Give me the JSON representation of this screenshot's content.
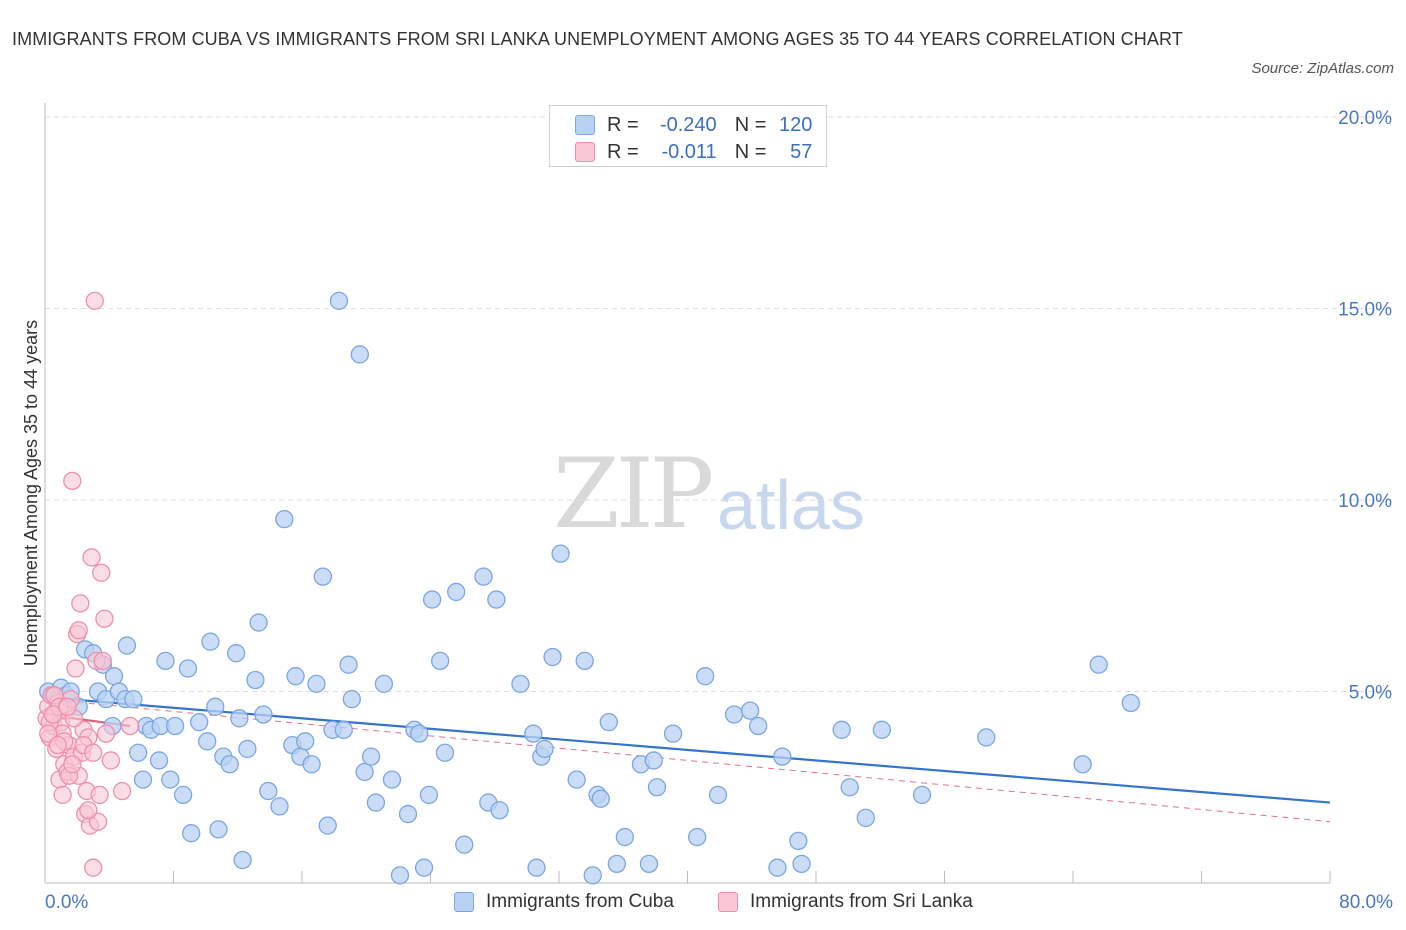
{
  "header": {
    "title": "IMMIGRANTS FROM CUBA VS IMMIGRANTS FROM SRI LANKA UNEMPLOYMENT AMONG AGES 35 TO 44 YEARS CORRELATION CHART",
    "source": "Source: ZipAtlas.com"
  },
  "watermark": {
    "zip": "ZIP",
    "atlas": "atlas"
  },
  "legend": {
    "r_label": "R =",
    "n_label": "N =",
    "cuba": {
      "r": "-0.240",
      "n": "120"
    },
    "srilanka": {
      "r": "-0.011",
      "n": "57"
    }
  },
  "colors": {
    "cuba_fill": "#b9d1f3",
    "cuba_stroke": "#7aa6e3",
    "cuba_line": "#3373cc",
    "srilanka_fill": "#f8c6d4",
    "srilanka_stroke": "#ef8fac",
    "srilanka_line": "#e0607e",
    "axis_text": "#4a78c2",
    "grid": "#dddddd"
  },
  "chart_data": {
    "type": "scatter",
    "title": "IMMIGRANTS FROM CUBA VS IMMIGRANTS FROM SRI LANKA UNEMPLOYMENT AMONG AGES 35 TO 44 YEARS CORRELATION CHART",
    "xlabel": "",
    "ylabel": "Unemployment Among Ages 35 to 44 years",
    "xlim": [
      0,
      80
    ],
    "ylim": [
      0,
      20
    ],
    "x_tick_labels": [
      "0.0%",
      "80.0%"
    ],
    "y_ticks": [
      5,
      10,
      15,
      20
    ],
    "y_tick_labels": [
      "5.0%",
      "10.0%",
      "15.0%",
      "20.0%"
    ],
    "grid": true,
    "series": [
      {
        "name": "Immigrants from Cuba",
        "r": -0.24,
        "n": 120,
        "trend": {
          "x": [
            0,
            80
          ],
          "y": [
            4.85,
            2.1
          ]
        },
        "points": [
          [
            0.2,
            5.0
          ],
          [
            0.5,
            4.9
          ],
          [
            0.8,
            4.8
          ],
          [
            1.0,
            5.1
          ],
          [
            1.3,
            4.9
          ],
          [
            1.6,
            5.0
          ],
          [
            2.1,
            4.6
          ],
          [
            2.5,
            6.1
          ],
          [
            3.0,
            6.0
          ],
          [
            3.3,
            5.0
          ],
          [
            3.6,
            5.7
          ],
          [
            3.8,
            4.8
          ],
          [
            4.2,
            4.1
          ],
          [
            4.3,
            5.4
          ],
          [
            4.6,
            5.0
          ],
          [
            5.0,
            4.8
          ],
          [
            5.1,
            6.2
          ],
          [
            5.5,
            4.8
          ],
          [
            5.8,
            3.4
          ],
          [
            6.1,
            2.7
          ],
          [
            6.3,
            4.1
          ],
          [
            6.6,
            4.0
          ],
          [
            7.1,
            3.2
          ],
          [
            7.2,
            4.1
          ],
          [
            7.5,
            5.8
          ],
          [
            7.8,
            2.7
          ],
          [
            8.1,
            4.1
          ],
          [
            8.6,
            2.3
          ],
          [
            8.9,
            5.6
          ],
          [
            9.1,
            1.3
          ],
          [
            9.6,
            4.2
          ],
          [
            10.1,
            3.7
          ],
          [
            10.3,
            6.3
          ],
          [
            10.6,
            4.6
          ],
          [
            10.8,
            1.4
          ],
          [
            11.1,
            3.3
          ],
          [
            11.5,
            3.1
          ],
          [
            11.9,
            6.0
          ],
          [
            12.1,
            4.3
          ],
          [
            12.3,
            0.6
          ],
          [
            12.6,
            3.5
          ],
          [
            13.1,
            5.3
          ],
          [
            13.3,
            6.8
          ],
          [
            13.6,
            4.4
          ],
          [
            13.9,
            2.4
          ],
          [
            14.6,
            2.0
          ],
          [
            14.9,
            9.5
          ],
          [
            15.4,
            3.6
          ],
          [
            15.6,
            5.4
          ],
          [
            15.9,
            3.3
          ],
          [
            16.2,
            3.7
          ],
          [
            16.6,
            3.1
          ],
          [
            16.9,
            5.2
          ],
          [
            17.3,
            8.0
          ],
          [
            17.6,
            1.5
          ],
          [
            17.9,
            4.0
          ],
          [
            18.3,
            15.2
          ],
          [
            18.6,
            4.0
          ],
          [
            18.9,
            5.7
          ],
          [
            19.1,
            4.8
          ],
          [
            19.6,
            13.8
          ],
          [
            19.9,
            2.9
          ],
          [
            20.3,
            3.3
          ],
          [
            20.6,
            2.1
          ],
          [
            21.1,
            5.2
          ],
          [
            21.6,
            2.7
          ],
          [
            22.1,
            0.2
          ],
          [
            22.6,
            1.8
          ],
          [
            23.0,
            4.0
          ],
          [
            23.3,
            3.9
          ],
          [
            23.6,
            0.4
          ],
          [
            23.9,
            2.3
          ],
          [
            24.1,
            7.4
          ],
          [
            24.6,
            5.8
          ],
          [
            24.9,
            3.4
          ],
          [
            25.6,
            7.6
          ],
          [
            26.1,
            1.0
          ],
          [
            27.3,
            8.0
          ],
          [
            27.6,
            2.1
          ],
          [
            28.1,
            7.4
          ],
          [
            28.3,
            1.9
          ],
          [
            29.6,
            5.2
          ],
          [
            30.4,
            3.9
          ],
          [
            30.6,
            0.4
          ],
          [
            30.9,
            3.3
          ],
          [
            31.1,
            3.5
          ],
          [
            31.6,
            5.9
          ],
          [
            32.1,
            8.6
          ],
          [
            33.1,
            2.7
          ],
          [
            33.6,
            5.8
          ],
          [
            34.1,
            0.2
          ],
          [
            34.4,
            2.3
          ],
          [
            34.6,
            2.2
          ],
          [
            35.1,
            4.2
          ],
          [
            35.6,
            0.5
          ],
          [
            36.1,
            1.2
          ],
          [
            37.1,
            3.1
          ],
          [
            37.6,
            0.5
          ],
          [
            37.9,
            3.2
          ],
          [
            38.1,
            2.5
          ],
          [
            39.1,
            3.9
          ],
          [
            40.6,
            1.2
          ],
          [
            41.1,
            5.4
          ],
          [
            41.9,
            2.3
          ],
          [
            42.9,
            4.4
          ],
          [
            43.9,
            4.5
          ],
          [
            44.4,
            4.1
          ],
          [
            45.6,
            0.4
          ],
          [
            45.9,
            3.3
          ],
          [
            46.9,
            1.1
          ],
          [
            47.1,
            0.5
          ],
          [
            49.6,
            4.0
          ],
          [
            50.1,
            2.5
          ],
          [
            51.1,
            1.7
          ],
          [
            52.1,
            4.0
          ],
          [
            54.6,
            2.3
          ],
          [
            58.6,
            3.8
          ],
          [
            64.6,
            3.1
          ],
          [
            65.6,
            5.7
          ],
          [
            67.6,
            4.7
          ]
        ]
      },
      {
        "name": "Immigrants from Sri Lanka",
        "r": -0.011,
        "n": 57,
        "trend": {
          "x": [
            0,
            80
          ],
          "y": [
            4.8,
            1.6
          ]
        },
        "trend_solid": {
          "x": [
            0,
            5.3
          ],
          "y": [
            4.4,
            4.1
          ]
        },
        "points": [
          [
            0.1,
            4.3
          ],
          [
            0.2,
            4.6
          ],
          [
            0.3,
            3.8
          ],
          [
            0.4,
            4.9
          ],
          [
            0.5,
            4.1
          ],
          [
            0.6,
            4.4
          ],
          [
            0.7,
            3.5
          ],
          [
            0.8,
            4.7
          ],
          [
            0.9,
            2.7
          ],
          [
            1.0,
            4.2
          ],
          [
            1.1,
            3.9
          ],
          [
            1.2,
            3.1
          ],
          [
            1.3,
            4.5
          ],
          [
            1.4,
            2.9
          ],
          [
            1.5,
            3.6
          ],
          [
            1.6,
            4.8
          ],
          [
            1.7,
            10.5
          ],
          [
            1.8,
            3.3
          ],
          [
            1.9,
            5.6
          ],
          [
            2.0,
            6.5
          ],
          [
            2.1,
            2.8
          ],
          [
            2.2,
            7.3
          ],
          [
            2.3,
            3.4
          ],
          [
            2.4,
            4.0
          ],
          [
            2.5,
            1.8
          ],
          [
            2.6,
            2.4
          ],
          [
            2.7,
            3.8
          ],
          [
            2.8,
            1.5
          ],
          [
            2.9,
            8.5
          ],
          [
            3.0,
            0.4
          ],
          [
            3.1,
            15.2
          ],
          [
            3.2,
            5.8
          ],
          [
            3.3,
            1.6
          ],
          [
            3.4,
            2.3
          ],
          [
            3.5,
            8.1
          ],
          [
            3.6,
            5.8
          ],
          [
            3.7,
            6.9
          ],
          [
            3.8,
            3.9
          ],
          [
            4.1,
            3.2
          ],
          [
            4.8,
            2.4
          ],
          [
            5.3,
            4.1
          ],
          [
            0.3,
            4.2
          ],
          [
            0.6,
            4.9
          ],
          [
            0.9,
            4.6
          ],
          [
            1.2,
            3.7
          ],
          [
            1.5,
            2.8
          ],
          [
            1.8,
            4.3
          ],
          [
            2.1,
            6.6
          ],
          [
            2.4,
            3.6
          ],
          [
            2.7,
            1.9
          ],
          [
            3.0,
            3.4
          ],
          [
            0.2,
            3.9
          ],
          [
            0.5,
            4.4
          ],
          [
            0.8,
            3.6
          ],
          [
            1.1,
            2.3
          ],
          [
            1.4,
            4.6
          ],
          [
            1.7,
            3.1
          ]
        ]
      }
    ]
  },
  "bottom_legend": {
    "cuba_label": "Immigrants from Cuba",
    "srilanka_label": "Immigrants from Sri Lanka"
  }
}
